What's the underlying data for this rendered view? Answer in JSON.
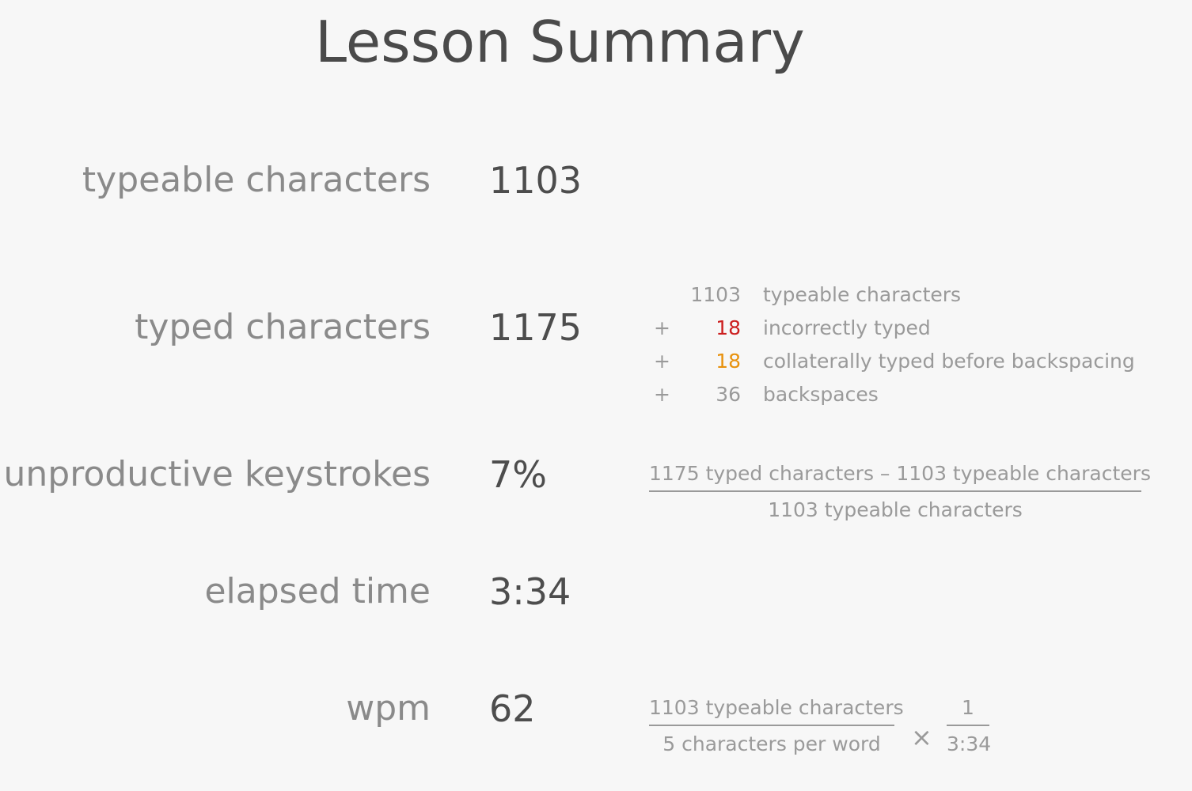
{
  "title": "Lesson Summary",
  "stats": [
    {
      "label": "typeable characters",
      "value": "1103"
    },
    {
      "label": "typed characters",
      "value": "1175"
    },
    {
      "label": "unproductive keystrokes",
      "value": "7%"
    },
    {
      "label": "elapsed time",
      "value": "3:34"
    },
    {
      "label": "wpm",
      "value": "62"
    }
  ],
  "breakdown": [
    {
      "op": "",
      "num": "1103",
      "desc": "typeable characters",
      "color": "#9a9a9a"
    },
    {
      "op": "+",
      "num": "18",
      "desc": "incorrectly typed",
      "color": "#cc1f1f"
    },
    {
      "op": "+",
      "num": "18",
      "desc": "collaterally typed before backspacing",
      "color": "#e8920e"
    },
    {
      "op": "+",
      "num": "36",
      "desc": "backspaces",
      "color": "#9a9a9a"
    }
  ],
  "unproductive_formula": {
    "numerator": "1175 typed characters – 1103 typeable characters",
    "denominator": "1103 typeable characters"
  },
  "wpm_formula": {
    "numerator": "1103 typeable characters",
    "denominator": "5 characters per word",
    "operator": "×",
    "numerator2": "1",
    "denominator2": "3:34"
  }
}
